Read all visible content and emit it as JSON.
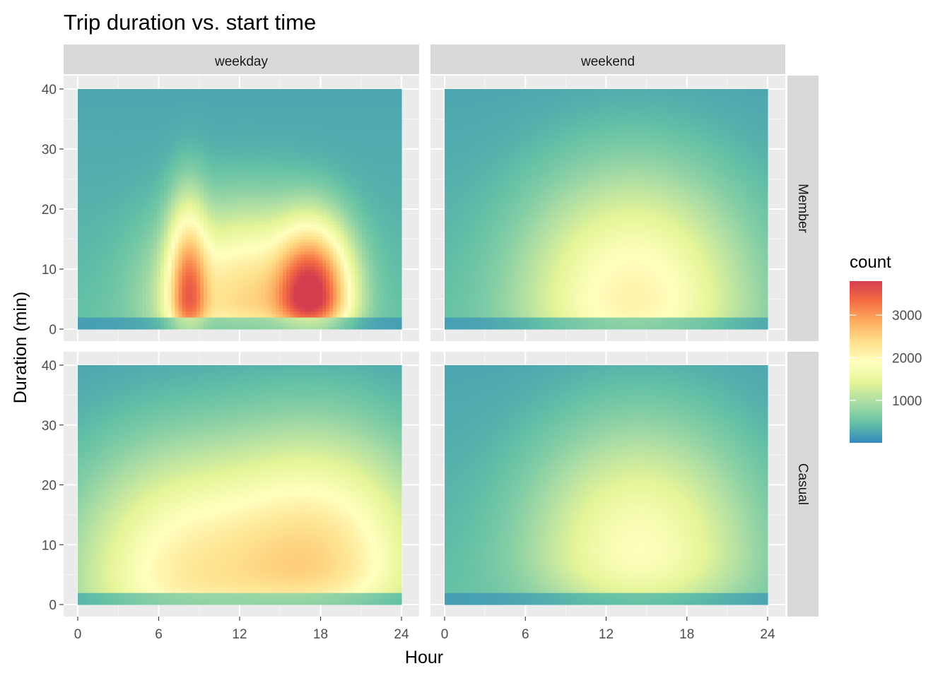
{
  "chart_data": {
    "type": "heatmap",
    "title": "Trip duration vs. start time",
    "xlabel": "Hour",
    "ylabel": "Duration (min)",
    "xlim": [
      0,
      24
    ],
    "ylim": [
      0,
      40
    ],
    "x_ticks": [
      0,
      6,
      12,
      18,
      24
    ],
    "y_ticks": [
      0,
      10,
      20,
      30,
      40
    ],
    "facet_columns": [
      "weekday",
      "weekend"
    ],
    "facet_rows": [
      "Member",
      "Casual"
    ],
    "fill_scale": {
      "name": "count",
      "palette": "Spectral",
      "limits": [
        1,
        3800
      ],
      "breaks": [
        1000,
        2000,
        3000
      ],
      "colors": [
        "#3288bd",
        "#66c2a5",
        "#abdda4",
        "#e6f598",
        "#ffffbf",
        "#fee08b",
        "#fdae61",
        "#f46d43",
        "#d53e4f"
      ]
    },
    "legend_position": "right",
    "grid": true,
    "panels": [
      {
        "row": "Member",
        "column": "weekday",
        "base": 60,
        "peaks": [
          {
            "hour": 17.3,
            "duration": 5.5,
            "count": 3800
          },
          {
            "hour": 8.2,
            "duration": 5.5,
            "count": 2500
          },
          {
            "hour": 12.5,
            "duration": 5,
            "count": 1500
          }
        ]
      },
      {
        "row": "Member",
        "column": "weekend",
        "base": 60,
        "peaks": [
          {
            "hour": 14,
            "duration": 5,
            "count": 1100
          }
        ]
      },
      {
        "row": "Casual",
        "column": "weekday",
        "base": 60,
        "peaks": [
          {
            "hour": 17.5,
            "duration": 7,
            "count": 1500
          },
          {
            "hour": 8.2,
            "duration": 5,
            "count": 1100
          }
        ]
      },
      {
        "row": "Casual",
        "column": "weekend",
        "base": 60,
        "peaks": [
          {
            "hour": 14.5,
            "duration": 9,
            "count": 850
          }
        ]
      }
    ]
  }
}
